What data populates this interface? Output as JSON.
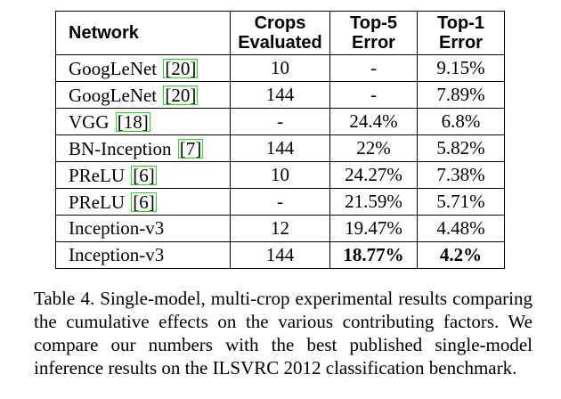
{
  "table": {
    "headers": {
      "network": "Network",
      "crops_line1": "Crops",
      "crops_line2": "Evaluated",
      "top5_line1": "Top-5",
      "top5_line2": "Error",
      "top1_line1": "Top-1",
      "top1_line2": "Error"
    },
    "rows": [
      {
        "network": "GoogLeNet",
        "ref": "[20]",
        "crops": "10",
        "top5": "-",
        "top1": "9.15%"
      },
      {
        "network": "GoogLeNet",
        "ref": "[20]",
        "crops": "144",
        "top5": "-",
        "top1": "7.89%"
      },
      {
        "network": "VGG",
        "ref": "[18]",
        "crops": "-",
        "top5": "24.4%",
        "top1": "6.8%"
      },
      {
        "network": "BN-Inception",
        "ref": "[7]",
        "crops": "144",
        "top5": "22%",
        "top1": "5.82%"
      },
      {
        "network": "PReLU",
        "ref": "[6]",
        "crops": "10",
        "top5": "24.27%",
        "top1": "7.38%"
      },
      {
        "network": "PReLU",
        "ref": "[6]",
        "crops": "-",
        "top5": "21.59%",
        "top1": "5.71%"
      },
      {
        "network": "Inception-v3",
        "ref": "",
        "crops": "12",
        "top5": "19.47%",
        "top1": "4.48%"
      },
      {
        "network": "Inception-v3",
        "ref": "",
        "crops": "144",
        "top5": "18.77%",
        "top1": "4.2%"
      }
    ]
  },
  "caption": "Table 4. Single-model, multi-crop experimental results comparing the cumulative effects on the various contributing factors. We compare our numbers with the best published single-model inference results on the ILSVRC 2012 classification benchmark."
}
